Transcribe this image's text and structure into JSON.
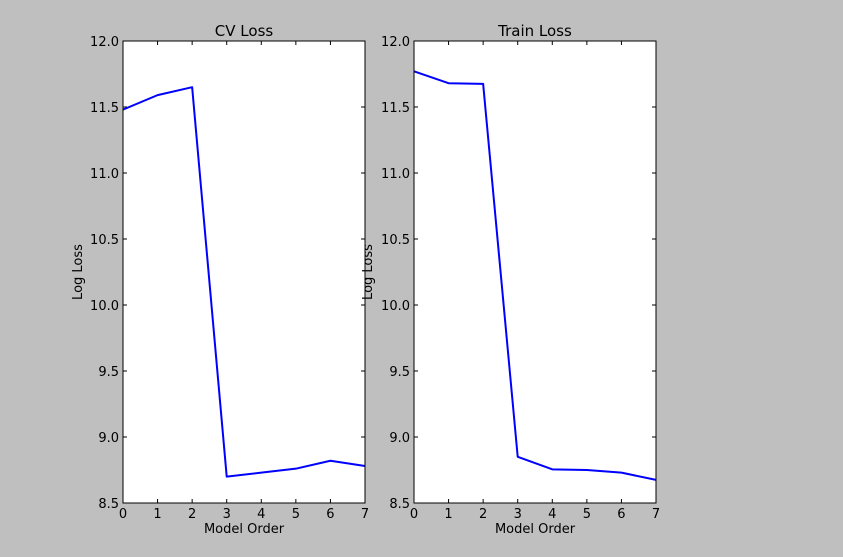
{
  "chart_data": [
    {
      "type": "line",
      "title": "CV Loss",
      "xlabel": "Model Order",
      "ylabel": "Log Loss",
      "xlim": [
        0,
        7
      ],
      "ylim": [
        8.5,
        12.0
      ],
      "xticks": [
        "0",
        "1",
        "2",
        "3",
        "4",
        "5",
        "6",
        "7"
      ],
      "yticks": [
        "8.5",
        "9.0",
        "9.5",
        "10.0",
        "10.5",
        "11.0",
        "11.5",
        "12.0"
      ],
      "grid": false,
      "series": [
        {
          "x": [
            0,
            1,
            2,
            3,
            4,
            5,
            6,
            7
          ],
          "values": [
            11.48,
            11.59,
            11.65,
            8.7,
            8.73,
            8.76,
            8.82,
            8.78
          ],
          "color": "#0000ff"
        }
      ]
    },
    {
      "type": "line",
      "title": "Train Loss",
      "xlabel": "Model Order",
      "ylabel": "Log Loss",
      "xlim": [
        0,
        7
      ],
      "ylim": [
        8.5,
        12.0
      ],
      "xticks": [
        "0",
        "1",
        "2",
        "3",
        "4",
        "5",
        "6",
        "7"
      ],
      "yticks": [
        "8.5",
        "9.0",
        "9.5",
        "10.0",
        "10.5",
        "11.0",
        "11.5",
        "12.0"
      ],
      "grid": false,
      "series": [
        {
          "x": [
            0,
            1,
            2,
            3,
            4,
            5,
            6,
            7
          ],
          "values": [
            11.77,
            11.68,
            11.675,
            8.85,
            8.755,
            8.75,
            8.73,
            8.675
          ],
          "color": "#0000ff"
        }
      ]
    }
  ]
}
